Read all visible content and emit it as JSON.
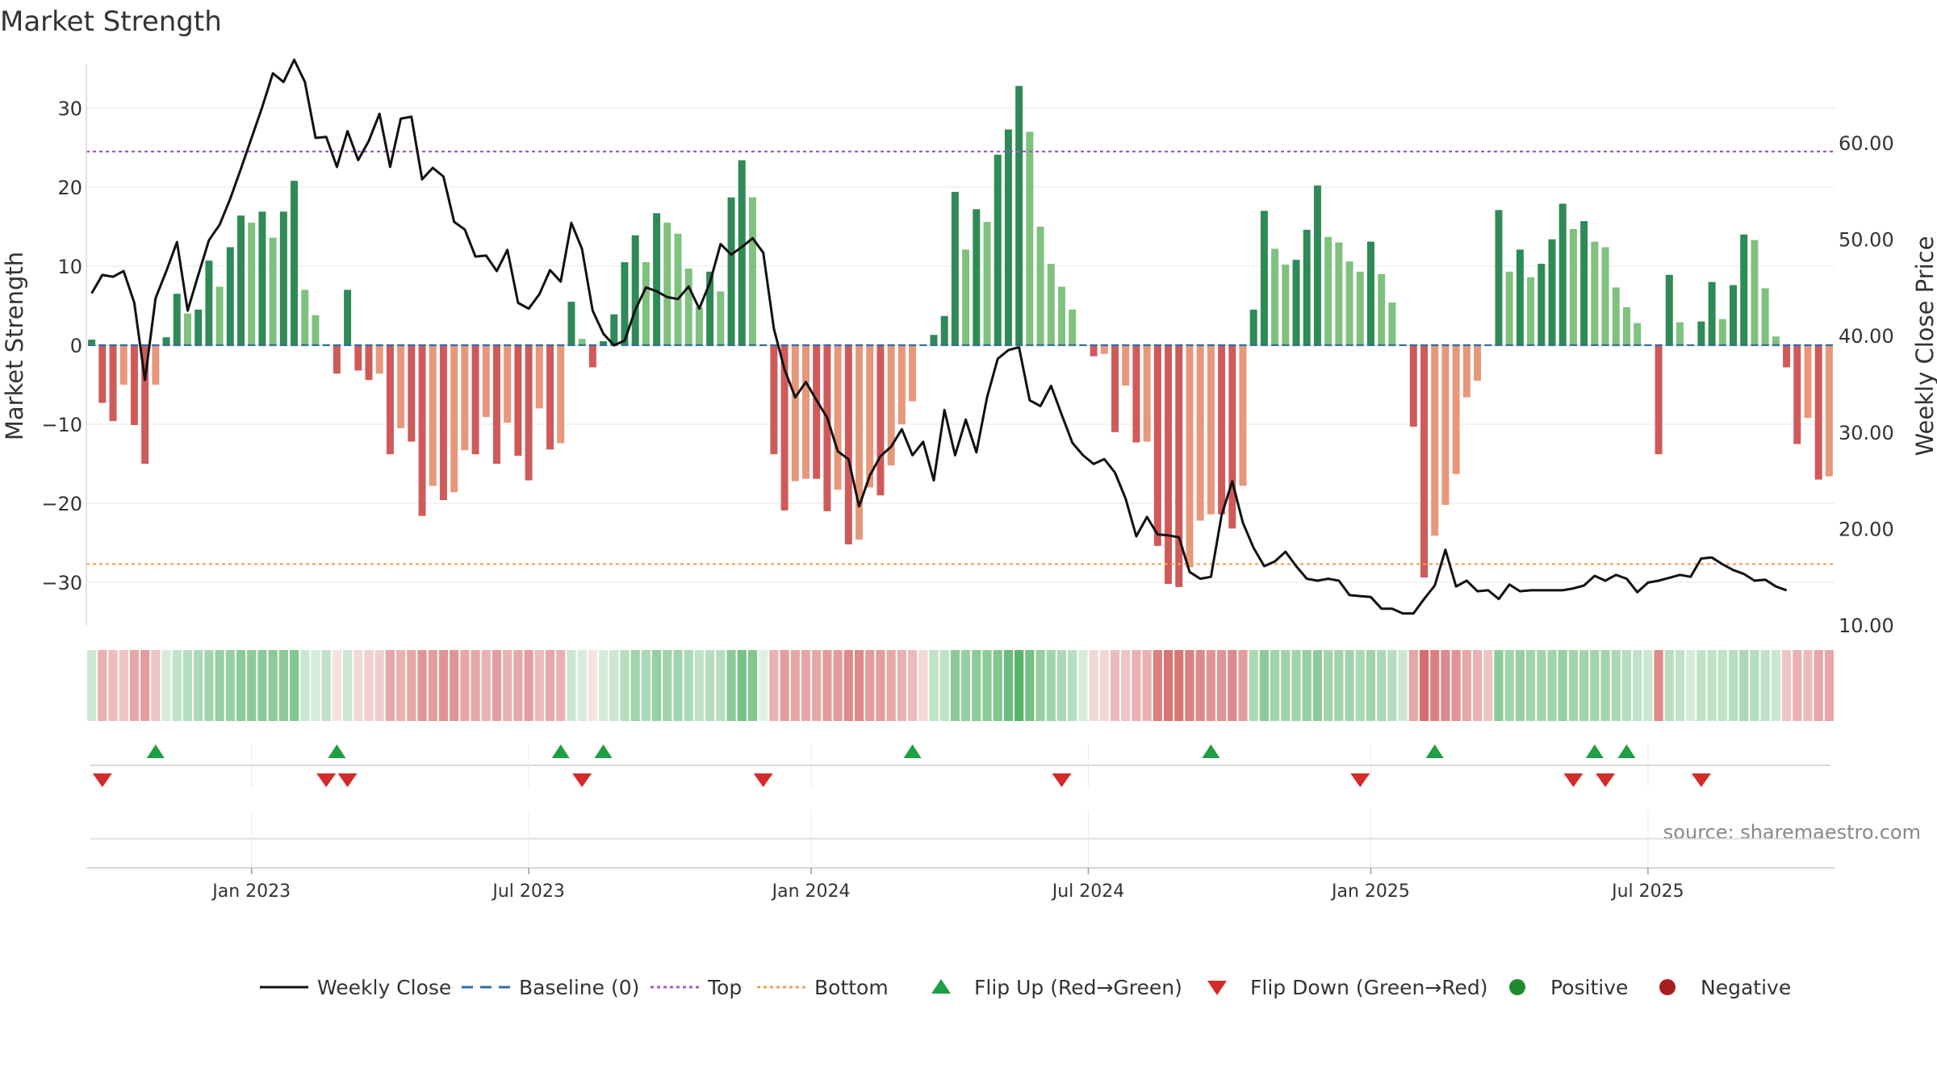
{
  "chart_data": {
    "type": "bar",
    "title": "Market Strength",
    "ylabel_left": "Market Strength",
    "ylabel_right": "Weekly Close Price",
    "ylim_left": [
      -35,
      36
    ],
    "ylim_right": [
      10,
      68
    ],
    "left_ticks": [
      30,
      20,
      10,
      0,
      -10,
      -20,
      -30
    ],
    "left_tick_labels": [
      "30",
      "20",
      "10",
      "0",
      "−10",
      "−20",
      "−30"
    ],
    "right_ticks": [
      60,
      50,
      40,
      30,
      20,
      10
    ],
    "right_tick_labels": [
      "60.00",
      "50.00",
      "40.00",
      "30.00",
      "20.00",
      "10.00"
    ],
    "x_tick_labels": [
      "Jan 2023",
      "Jul 2023",
      "Jan 2024",
      "Jul 2024",
      "Jan 2025",
      "Jul 2025"
    ],
    "x_tick_weeks": [
      15,
      41,
      67.5,
      93.5,
      120,
      146
    ],
    "top_level": 24.5,
    "bottom_level": -27.7,
    "baseline": 0,
    "strength": [
      0.7,
      -7.3,
      -9.6,
      -5.0,
      -10.1,
      -15.0,
      -5.0,
      1.0,
      6.5,
      4.0,
      4.5,
      10.7,
      7.4,
      12.4,
      16.4,
      15.5,
      16.9,
      13.6,
      16.9,
      20.8,
      7.0,
      3.8,
      0,
      -3.6,
      7.0,
      -3.2,
      -4.4,
      -3.6,
      -13.8,
      -10.5,
      -12.2,
      -21.6,
      -17.8,
      -19.6,
      -18.6,
      -13.3,
      -13.8,
      -9.1,
      -15.0,
      -9.8,
      -14.0,
      -17.1,
      -8.0,
      -13.2,
      -12.4,
      5.5,
      0.8,
      -2.8,
      0.5,
      3.9,
      10.5,
      13.9,
      10.5,
      16.7,
      15.5,
      14.1,
      9.7,
      4.8,
      9.3,
      6.8,
      18.7,
      23.4,
      18.7,
      0,
      -13.8,
      -20.9,
      -17.2,
      -16.9,
      -16.9,
      -21.0,
      -18.3,
      -25.2,
      -24.6,
      -18.0,
      -19.0,
      -15.2,
      -10.0,
      -7.1,
      0,
      1.3,
      3.7,
      19.4,
      12.1,
      17.2,
      15.6,
      24.1,
      27.3,
      32.8,
      27.0,
      15.0,
      10.3,
      7.4,
      4.5,
      0,
      -1.4,
      -1.1,
      -11.0,
      -5.1,
      -12.3,
      -12.2,
      -25.4,
      -30.2,
      -30.6,
      -28.1,
      -22.2,
      -21.4,
      -21.4,
      -23.2,
      -17.8,
      4.5,
      17.0,
      12.2,
      10.2,
      10.8,
      14.6,
      20.2,
      13.7,
      13.0,
      10.6,
      9.3,
      13.1,
      9.0,
      5.4,
      0,
      -10.3,
      -29.4,
      -24.1,
      -20.2,
      -16.3,
      -6.6,
      -4.5,
      0,
      17.1,
      9.3,
      12.1,
      8.6,
      10.3,
      13.4,
      17.9,
      14.7,
      15.7,
      13.1,
      12.4,
      7.3,
      4.8,
      2.8,
      0,
      -13.8,
      8.9,
      2.9,
      0,
      3.0,
      8.0,
      3.3,
      7.6,
      14.0,
      13.3,
      7.2,
      1.1,
      -2.8,
      -12.5,
      -9.2,
      -17.0,
      -16.6
    ],
    "close": [
      44.4,
      46.3,
      46.1,
      46.7,
      43.4,
      35.4,
      43.9,
      46.7,
      49.7,
      42.6,
      46.3,
      49.9,
      51.5,
      54.2,
      57.3,
      60.5,
      63.7,
      67.2,
      66.3,
      68.6,
      66.3,
      60.5,
      60.6,
      57.5,
      61.2,
      58.2,
      60.2,
      63.0,
      57.5,
      62.5,
      62.7,
      56.2,
      57.4,
      56.5,
      51.8,
      51.0,
      48.2,
      48.3,
      46.7,
      48.9,
      43.4,
      42.8,
      44.3,
      46.8,
      45.6,
      51.7,
      49.0,
      42.6,
      40.2,
      39.0,
      39.5,
      42.7,
      45.0,
      44.6,
      44.0,
      43.8,
      45.1,
      42.8,
      45.5,
      49.5,
      48.4,
      49.2,
      50.1,
      48.6,
      40.7,
      36.5,
      33.6,
      35.2,
      33.3,
      31.5,
      28.0,
      27.2,
      22.3,
      25.5,
      27.5,
      28.5,
      30.3,
      27.6,
      29.0,
      25.0,
      32.3,
      27.6,
      31.3,
      27.9,
      33.6,
      37.6,
      38.5,
      38.8,
      33.3,
      32.7,
      34.8,
      31.8,
      28.9,
      27.6,
      26.7,
      27.2,
      25.8,
      23.1,
      19.2,
      21.2,
      19.4,
      19.3,
      19.1,
      15.5,
      14.8,
      15.0,
      21.4,
      24.9,
      20.6,
      18.0,
      16.1,
      16.6,
      17.6,
      16.1,
      14.8,
      14.6,
      14.8,
      14.6,
      13.1,
      13.0,
      12.9,
      11.7,
      11.7,
      11.2,
      11.2,
      12.7,
      14.1,
      17.8,
      14.0,
      14.6,
      13.5,
      13.6,
      12.7,
      14.2,
      13.5,
      13.6,
      13.6,
      13.6,
      13.6,
      13.8,
      14.1,
      15.1,
      14.6,
      15.2,
      14.8,
      13.4,
      14.4,
      14.6,
      14.9,
      15.2,
      15.0,
      16.9,
      17.0,
      16.3,
      15.7,
      15.3,
      14.6,
      14.7,
      14.0,
      13.6
    ],
    "strip_intensity": [
      0.25,
      0.4,
      0.35,
      0.3,
      0.45,
      0.5,
      0.3,
      0.2,
      0.3,
      0.35,
      0.4,
      0.45,
      0.5,
      0.5,
      0.55,
      0.55,
      0.55,
      0.55,
      0.55,
      0.6,
      0.25,
      0.2,
      0.3,
      0.15,
      0.25,
      0.2,
      0.25,
      0.25,
      0.45,
      0.4,
      0.45,
      0.55,
      0.5,
      0.55,
      0.55,
      0.45,
      0.45,
      0.4,
      0.5,
      0.4,
      0.45,
      0.5,
      0.35,
      0.45,
      0.4,
      0.25,
      0.2,
      0.15,
      0.2,
      0.25,
      0.35,
      0.45,
      0.4,
      0.5,
      0.45,
      0.45,
      0.4,
      0.3,
      0.35,
      0.35,
      0.55,
      0.65,
      0.6,
      0.15,
      0.4,
      0.5,
      0.45,
      0.45,
      0.45,
      0.5,
      0.5,
      0.6,
      0.6,
      0.5,
      0.5,
      0.45,
      0.4,
      0.35,
      0.2,
      0.3,
      0.3,
      0.55,
      0.5,
      0.55,
      0.55,
      0.6,
      0.7,
      0.8,
      0.65,
      0.5,
      0.45,
      0.4,
      0.35,
      0.2,
      0.2,
      0.2,
      0.35,
      0.3,
      0.4,
      0.4,
      0.65,
      0.7,
      0.7,
      0.65,
      0.6,
      0.55,
      0.55,
      0.6,
      0.5,
      0.4,
      0.55,
      0.45,
      0.45,
      0.45,
      0.5,
      0.55,
      0.45,
      0.45,
      0.45,
      0.4,
      0.45,
      0.4,
      0.35,
      0.25,
      0.45,
      0.75,
      0.65,
      0.6,
      0.55,
      0.45,
      0.4,
      0.3,
      0.55,
      0.45,
      0.5,
      0.45,
      0.45,
      0.45,
      0.5,
      0.45,
      0.45,
      0.45,
      0.45,
      0.4,
      0.35,
      0.3,
      0.25,
      0.6,
      0.35,
      0.3,
      0.2,
      0.3,
      0.3,
      0.3,
      0.35,
      0.4,
      0.35,
      0.3,
      0.25,
      0.3,
      0.4,
      0.35,
      0.45,
      0.45
    ],
    "flips_up_weeks": [
      6,
      23,
      44,
      48,
      77,
      105,
      126,
      141,
      144
    ],
    "flips_down_weeks": [
      1,
      22,
      24,
      46,
      63,
      91,
      119,
      139,
      142,
      151
    ],
    "legend": [
      {
        "label": "Weekly Close",
        "marker": "line",
        "color": "#111111"
      },
      {
        "label": "Baseline (0)",
        "marker": "dash",
        "color": "#2f6ea7"
      },
      {
        "label": "Top",
        "marker": "dot",
        "color": "#a05bc8"
      },
      {
        "label": "Bottom",
        "marker": "dot",
        "color": "#f0a050"
      },
      {
        "label": "Flip Up (Red→Green)",
        "marker": "triangle-up",
        "color": "#1e9e45"
      },
      {
        "label": "Flip Down (Green→Red)",
        "marker": "triangle-down",
        "color": "#d42a2a"
      },
      {
        "label": "Positive",
        "marker": "circle",
        "color": "#1e8c2e"
      },
      {
        "label": "Negative",
        "marker": "circle",
        "color": "#a81e1e"
      }
    ],
    "source": "source: sharemaestro.com"
  },
  "colors": {
    "pos_dark": "#2e8a57",
    "pos_light": "#7fc17f",
    "neg_dark": "#cf5a5a",
    "neg_light": "#e8977a",
    "close_line": "#111111",
    "baseline": "#2f6ea7",
    "top_line": "#a05bc8",
    "bottom_line": "#f0a050",
    "flip_up": "#1e9e45",
    "flip_down": "#d42a2a",
    "grid": "#ececec",
    "axis_text": "#333333"
  }
}
